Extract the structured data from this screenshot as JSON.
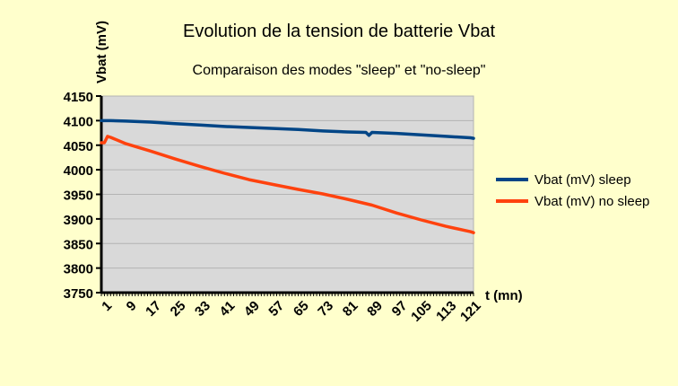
{
  "chart_data": {
    "type": "line",
    "title": "Evolution de la tension de batterie Vbat",
    "subtitle": "Comparaison des modes \"sleep\" et \"no-sleep\"",
    "ylabel": "Vbat (mV)",
    "xlabel": "t (mn)",
    "ylim": [
      3750,
      4150
    ],
    "xlim": [
      1,
      122
    ],
    "yticks": [
      3750,
      3800,
      3850,
      3900,
      3950,
      4000,
      4050,
      4100,
      4150
    ],
    "xticks": [
      1,
      9,
      17,
      25,
      33,
      41,
      49,
      57,
      65,
      73,
      81,
      89,
      97,
      105,
      113,
      121
    ],
    "grid": true,
    "legend_position": "right",
    "plot_background": "#d9d9d9",
    "series": [
      {
        "name": "Vbat (mV) sleep",
        "color": "#004586",
        "x": [
          1,
          4,
          9,
          17,
          25,
          33,
          41,
          49,
          57,
          65,
          73,
          81,
          87,
          88,
          89,
          97,
          105,
          113,
          121,
          122
        ],
        "y": [
          4100,
          4100,
          4099,
          4097,
          4094,
          4091,
          4088,
          4086,
          4084,
          4082,
          4079,
          4077,
          4076,
          4070,
          4076,
          4074,
          4071,
          4068,
          4065,
          4064
        ]
      },
      {
        "name": "Vbat (mV) no sleep",
        "color": "#ff420e",
        "x": [
          1,
          2,
          3,
          4,
          9,
          17,
          25,
          33,
          41,
          49,
          57,
          65,
          73,
          81,
          89,
          97,
          105,
          113,
          121,
          122
        ],
        "y": [
          4055,
          4055,
          4068,
          4066,
          4053,
          4038,
          4022,
          4007,
          3993,
          3980,
          3970,
          3960,
          3951,
          3940,
          3928,
          3912,
          3898,
          3885,
          3874,
          3872
        ]
      }
    ]
  }
}
